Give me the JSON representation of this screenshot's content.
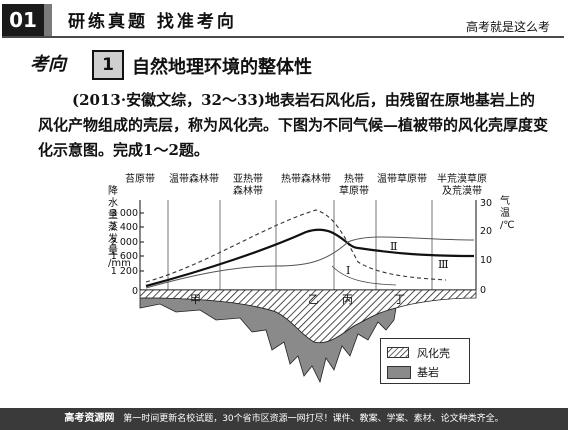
{
  "header": {
    "number": "01",
    "title": "研练真题 找准考向",
    "subtitle": "高考就是这么考"
  },
  "section": {
    "word": "考向",
    "badge": "1",
    "title": "自然地理环境的整体性"
  },
  "question": {
    "text": "(2013·安徽文综，32～33)地表岩石风化后，由残留在原地基岩上的风化产物组成的壳层，称为风化壳。下图为不同气候—植被带的风化壳厚度变化示意图。完成1～2题。"
  },
  "chart_data": {
    "type": "line",
    "zones": [
      "苔原带",
      "温带森林带",
      "亚热带森林带",
      "热带森林带",
      "热带草原带",
      "温带草原带",
      "半荒漠草原及荒漠带"
    ],
    "ylabel_left": "降水量蒸发量/mm",
    "ylabel_right": "气温/℃",
    "yticks_left": [
      "3 000",
      "2 400",
      "2 000",
      "1 600",
      "1 200",
      "800",
      "0"
    ],
    "yticks_right": [
      "30",
      "20",
      "10",
      "0"
    ],
    "curve_labels": [
      "Ⅰ",
      "Ⅱ",
      "Ⅲ"
    ],
    "location_labels": [
      "甲",
      "乙",
      "丙",
      "丁"
    ],
    "legend": [
      {
        "label": "风化壳",
        "pattern": "hatched"
      },
      {
        "label": "基岩",
        "pattern": "gray"
      }
    ]
  },
  "footer": {
    "site": "高考资源网",
    "text": "第一时间更新名校试题，30个省市区资源一网打尽！课件、教案、学案、素材、论文种类齐全。"
  }
}
